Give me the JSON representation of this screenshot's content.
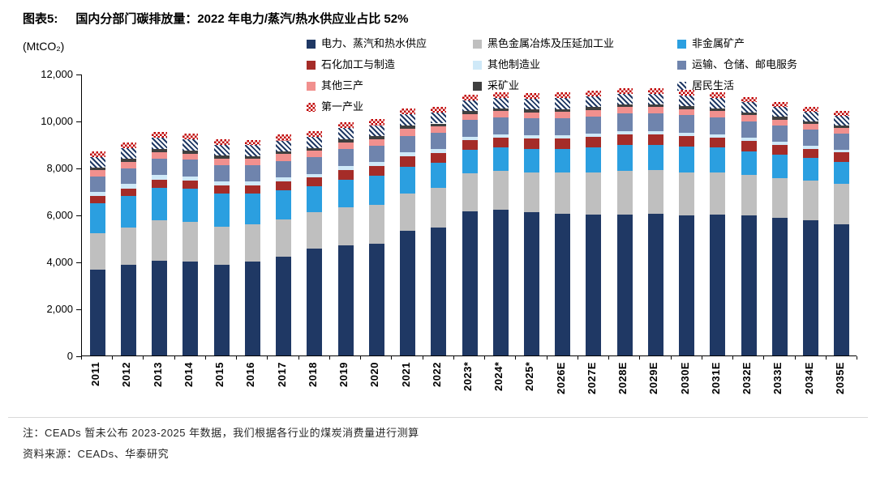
{
  "header": {
    "label": "图表5:",
    "title": "国内分部门碳排放量：2022 年电力/蒸汽/热水供应业占比 52%"
  },
  "chart_data": {
    "type": "bar",
    "stacked": true,
    "title": "国内分部门碳排放量",
    "unit_label": "(MtCO₂)",
    "ylabel": "MtCO2",
    "ylim": [
      0,
      12000
    ],
    "yticks": [
      0,
      2000,
      4000,
      6000,
      8000,
      10000,
      12000
    ],
    "grid": false,
    "legend_position": "top",
    "categories": [
      "2011",
      "2012",
      "2013",
      "2014",
      "2015",
      "2016",
      "2017",
      "2018",
      "2019",
      "2020",
      "2021",
      "2022",
      "2023*",
      "2024*",
      "2025*",
      "2026E",
      "2027E",
      "2028E",
      "2029E",
      "2030E",
      "2031E",
      "2032E",
      "2033E",
      "2034E",
      "2035E"
    ],
    "series": [
      {
        "name": "电力、蒸汽和热水供应",
        "color": "#1f3864",
        "pattern": "solid",
        "values": [
          3650,
          3850,
          4050,
          4000,
          3850,
          4000,
          4200,
          4550,
          4700,
          4750,
          5300,
          5450,
          6150,
          6200,
          6100,
          6050,
          6000,
          6000,
          6050,
          5950,
          6000,
          5950,
          5850,
          5750,
          5600
        ]
      },
      {
        "name": "黑色金属冶炼及压延加工业",
        "color": "#bfbfbf",
        "pattern": "solid",
        "values": [
          1550,
          1600,
          1700,
          1700,
          1650,
          1600,
          1600,
          1550,
          1600,
          1650,
          1600,
          1700,
          1600,
          1650,
          1700,
          1750,
          1800,
          1850,
          1850,
          1850,
          1800,
          1750,
          1700,
          1700,
          1700
        ]
      },
      {
        "name": "非金属矿产",
        "color": "#2b9fe0",
        "pattern": "solid",
        "values": [
          1300,
          1350,
          1400,
          1400,
          1400,
          1300,
          1250,
          1100,
          1200,
          1250,
          1150,
          1050,
          1000,
          1000,
          1000,
          1000,
          1050,
          1100,
          1050,
          1100,
          1050,
          1000,
          1000,
          950,
          950
        ]
      },
      {
        "name": "石化加工与制造",
        "color": "#a52c28",
        "pattern": "solid",
        "values": [
          300,
          320,
          350,
          350,
          350,
          350,
          360,
          380,
          400,
          420,
          430,
          420,
          420,
          430,
          430,
          440,
          450,
          460,
          460,
          450,
          440,
          430,
          420,
          410,
          400
        ]
      },
      {
        "name": "其他制造业",
        "color": "#cfe9f8",
        "pattern": "solid",
        "values": [
          180,
          180,
          180,
          180,
          170,
          170,
          170,
          160,
          160,
          160,
          160,
          160,
          150,
          150,
          150,
          150,
          150,
          150,
          150,
          150,
          140,
          140,
          130,
          130,
          120
        ]
      },
      {
        "name": "运输、仓储、邮电服务",
        "color": "#6f84ad",
        "pattern": "solid",
        "values": [
          650,
          680,
          700,
          700,
          700,
          690,
          710,
          710,
          730,
          700,
          720,
          700,
          700,
          700,
          710,
          720,
          730,
          740,
          740,
          730,
          720,
          710,
          700,
          690,
          680
        ]
      },
      {
        "name": "其他三产",
        "color": "#f1908e",
        "pattern": "solid",
        "values": [
          250,
          260,
          270,
          270,
          270,
          270,
          280,
          270,
          280,
          280,
          290,
          280,
          270,
          270,
          270,
          270,
          270,
          270,
          270,
          270,
          260,
          250,
          250,
          240,
          240
        ]
      },
      {
        "name": "采矿业",
        "color": "#3f3f3f",
        "pattern": "solid",
        "values": [
          130,
          130,
          140,
          140,
          130,
          120,
          120,
          120,
          130,
          130,
          130,
          120,
          120,
          120,
          120,
          120,
          120,
          120,
          120,
          120,
          110,
          110,
          110,
          100,
          100
        ]
      },
      {
        "name": "居民生活",
        "color": "#1f3864",
        "pattern": "diagonal-stripes",
        "values": [
          450,
          450,
          470,
          460,
          450,
          450,
          460,
          460,
          480,
          470,
          480,
          470,
          460,
          460,
          450,
          460,
          460,
          460,
          460,
          450,
          450,
          440,
          430,
          420,
          410
        ]
      },
      {
        "name": "第一产业",
        "color": "#c00000",
        "pattern": "checkerboard",
        "values": [
          240,
          250,
          260,
          250,
          250,
          240,
          250,
          250,
          260,
          250,
          260,
          250,
          240,
          240,
          240,
          240,
          240,
          240,
          240,
          240,
          230,
          230,
          220,
          210,
          200
        ]
      }
    ]
  },
  "footer": {
    "note": "注：CEADs 暂未公布 2023-2025 年数据，我们根据各行业的煤炭消费量进行测算",
    "source": "资料来源：CEADs、华泰研究"
  }
}
